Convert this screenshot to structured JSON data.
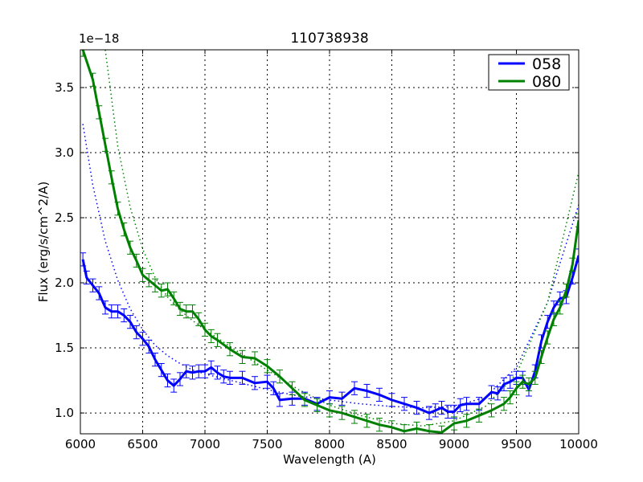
{
  "chart_data": {
    "type": "line",
    "title": "110738938",
    "xlabel": "Wavelength (A)",
    "ylabel": "Flux (erg/s/cm^2/A)",
    "y_offset_label": "1e−18",
    "xlim": [
      6000,
      10000
    ],
    "ylim": [
      0.84,
      3.79
    ],
    "xticks": [
      6000,
      6500,
      7000,
      7500,
      8000,
      8500,
      9000,
      9500,
      10000
    ],
    "xtick_labels": [
      "6000",
      "6500",
      "7000",
      "7500",
      "8000",
      "8500",
      "9000",
      "9500",
      "10000"
    ],
    "yticks": [
      1.0,
      1.5,
      2.0,
      2.5,
      3.0,
      3.5
    ],
    "ytick_labels": [
      "1.0",
      "1.5",
      "2.0",
      "2.5",
      "3.0",
      "3.5"
    ],
    "grid": true,
    "legend_position": "upper right",
    "series": [
      {
        "name": "058",
        "color": "#0000ff",
        "errorbars": true,
        "x": [
          6020,
          6050,
          6100,
          6150,
          6200,
          6250,
          6300,
          6350,
          6400,
          6450,
          6500,
          6550,
          6600,
          6650,
          6700,
          6750,
          6800,
          6850,
          6900,
          6950,
          7000,
          7050,
          7100,
          7150,
          7200,
          7300,
          7400,
          7500,
          7550,
          7600,
          7700,
          7800,
          7900,
          8000,
          8100,
          8200,
          8300,
          8400,
          8500,
          8600,
          8700,
          8800,
          8850,
          8900,
          8950,
          9000,
          9050,
          9100,
          9200,
          9300,
          9350,
          9400,
          9450,
          9500,
          9550,
          9600,
          9650,
          9700,
          9750,
          9800,
          9850,
          9900,
          9950,
          10000
        ],
        "y": [
          2.18,
          2.04,
          1.98,
          1.92,
          1.81,
          1.78,
          1.78,
          1.75,
          1.7,
          1.62,
          1.57,
          1.51,
          1.41,
          1.33,
          1.25,
          1.21,
          1.26,
          1.32,
          1.31,
          1.32,
          1.32,
          1.35,
          1.31,
          1.28,
          1.27,
          1.27,
          1.23,
          1.24,
          1.19,
          1.1,
          1.11,
          1.11,
          1.07,
          1.12,
          1.11,
          1.19,
          1.17,
          1.14,
          1.1,
          1.07,
          1.04,
          1.0,
          1.02,
          1.04,
          1.01,
          1.01,
          1.06,
          1.07,
          1.07,
          1.16,
          1.15,
          1.22,
          1.24,
          1.27,
          1.27,
          1.18,
          1.32,
          1.55,
          1.7,
          1.81,
          1.88,
          1.89,
          2.04,
          2.21
        ],
        "yerr": 0.05
      },
      {
        "name": "080",
        "color": "#008000",
        "errorbars": true,
        "x": [
          6020,
          6100,
          6150,
          6200,
          6250,
          6300,
          6350,
          6400,
          6450,
          6500,
          6550,
          6600,
          6650,
          6700,
          6750,
          6800,
          6850,
          6900,
          6950,
          7000,
          7050,
          7100,
          7200,
          7300,
          7400,
          7500,
          7600,
          7700,
          7800,
          7900,
          8000,
          8100,
          8200,
          8300,
          8400,
          8500,
          8600,
          8700,
          8800,
          8900,
          9000,
          9100,
          9200,
          9300,
          9400,
          9450,
          9500,
          9550,
          9600,
          9650,
          9700,
          9750,
          9800,
          9850,
          9900,
          9950,
          10000
        ],
        "y": [
          3.79,
          3.56,
          3.31,
          3.06,
          2.81,
          2.57,
          2.41,
          2.27,
          2.17,
          2.06,
          2.02,
          1.98,
          1.94,
          1.95,
          1.88,
          1.8,
          1.78,
          1.78,
          1.72,
          1.64,
          1.59,
          1.56,
          1.49,
          1.43,
          1.42,
          1.36,
          1.28,
          1.19,
          1.1,
          1.06,
          1.02,
          1.0,
          0.97,
          0.94,
          0.91,
          0.89,
          0.86,
          0.88,
          0.86,
          0.85,
          0.92,
          0.94,
          0.98,
          1.02,
          1.07,
          1.12,
          1.19,
          1.24,
          1.22,
          1.27,
          1.43,
          1.58,
          1.72,
          1.81,
          1.94,
          2.14,
          2.48
        ],
        "yerr": 0.05
      }
    ],
    "fit_series": [
      {
        "name": "058 fit",
        "color": "#0000ff",
        "style": "dotted",
        "x": [
          6020,
          6100,
          6200,
          6300,
          6400,
          6500,
          6600,
          6700,
          6800,
          6900,
          7000,
          7250,
          7500,
          7750,
          8000,
          8250,
          8500,
          8750,
          9000,
          9250,
          9500,
          9750,
          10000
        ],
        "y": [
          3.22,
          2.75,
          2.32,
          2.02,
          1.8,
          1.64,
          1.52,
          1.44,
          1.38,
          1.33,
          1.3,
          1.24,
          1.18,
          1.13,
          1.1,
          1.07,
          1.05,
          1.04,
          1.05,
          1.12,
          1.35,
          1.85,
          2.6
        ]
      },
      {
        "name": "080 fit",
        "color": "#008000",
        "style": "dotted",
        "x": [
          6200,
          6300,
          6400,
          6500,
          6600,
          6700,
          6800,
          6900,
          7000,
          7250,
          7500,
          7750,
          8000,
          8250,
          8500,
          8750,
          9000,
          9250,
          9500,
          9750,
          10000
        ],
        "y": [
          3.79,
          3.05,
          2.58,
          2.26,
          2.04,
          1.89,
          1.79,
          1.71,
          1.64,
          1.48,
          1.33,
          1.18,
          1.06,
          0.98,
          0.92,
          0.9,
          0.94,
          1.05,
          1.3,
          1.85,
          2.85
        ]
      }
    ]
  }
}
